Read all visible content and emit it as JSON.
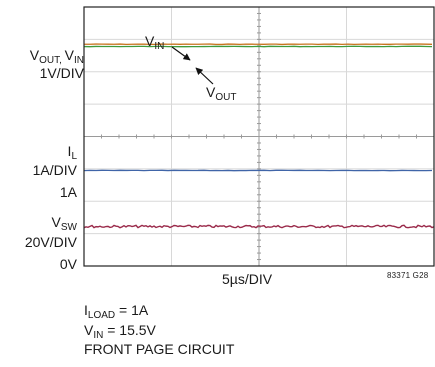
{
  "chart_data": {
    "type": "line",
    "title": "",
    "xlabel": "5µs/DIV",
    "figure_id": "83371 G28",
    "grid": true,
    "x_divisions": 4,
    "y_divisions": 8,
    "channels": [
      {
        "name_main": "V",
        "name_sub": "OUT, ",
        "name_main2": "V",
        "name_sub2": "IN",
        "scale": "1V/DIV",
        "traces": [
          {
            "name_main": "V",
            "name_sub": "IN",
            "color": "#c8741e",
            "level_div": 6.85
          },
          {
            "name_main": "V",
            "name_sub": "OUT",
            "color": "#3f9a3c",
            "level_div": 6.78
          }
        ]
      },
      {
        "name_main": "I",
        "name_sub": "L",
        "scale": "1A/DIV",
        "level_label": "1A",
        "traces": [
          {
            "name": "IL",
            "color": "#4065a8",
            "level_div": 2.95
          }
        ]
      },
      {
        "name_main": "V",
        "name_sub": "SW",
        "scale": "20V/DIV",
        "zero_label": "0V",
        "traces": [
          {
            "name": "VSW",
            "color": "#9a2a4a",
            "level_div": 1.22
          }
        ]
      }
    ],
    "annotations": [
      {
        "main": "V",
        "sub": "IN"
      },
      {
        "main": "V",
        "sub": "OUT"
      }
    ]
  },
  "conditions": [
    {
      "main": "I",
      "sub": "LOAD",
      "rest": " = 1A"
    },
    {
      "main": "V",
      "sub": "IN",
      "rest": " = 15.5V"
    },
    {
      "main": "FRONT PAGE CIRCUIT",
      "sub": "",
      "rest": ""
    }
  ]
}
